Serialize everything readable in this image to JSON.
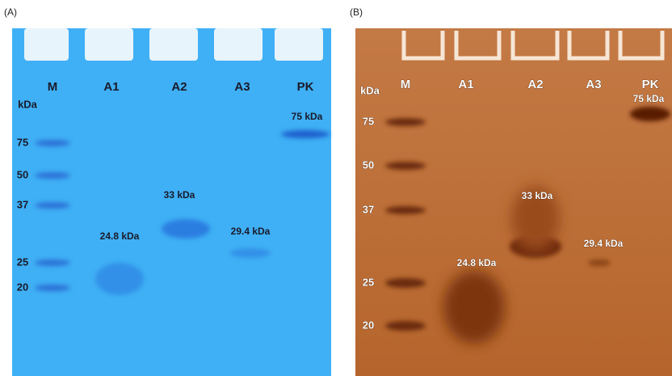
{
  "panels": [
    {
      "label": "(A)",
      "lanes": [
        "M",
        "A1",
        "A2",
        "A3",
        "PK"
      ],
      "unit": "kDa",
      "markers": [
        "75",
        "50",
        "37",
        "25",
        "20"
      ],
      "annotations": [
        "75 kDa",
        "33 kDa",
        "24.8 kDa",
        "29.4 kDa"
      ]
    },
    {
      "label": "(B)",
      "lanes": [
        "M",
        "A1",
        "A2",
        "A3",
        "PK"
      ],
      "unit": "kDa",
      "markers": [
        "75",
        "50",
        "37",
        "25",
        "20"
      ],
      "annotations": [
        "75 kDa",
        "33 kDa",
        "24.8 kDa",
        "29.4 kDa"
      ]
    }
  ]
}
